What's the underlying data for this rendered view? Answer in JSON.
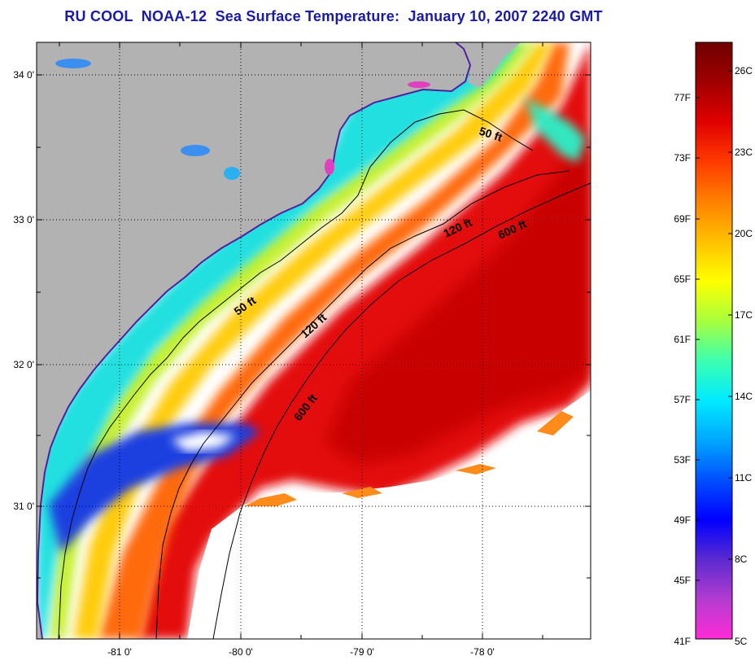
{
  "title": "RU COOL  NOAA-12  Sea Surface Temperature:  January 10, 2007 2240 GMT",
  "map": {
    "lat_ticks": [
      {
        "label": "34 0'"
      },
      {
        "label": "33 0'"
      },
      {
        "label": "32 0'"
      },
      {
        "label": "31 0'"
      }
    ],
    "lon_ticks": [
      {
        "label": "-81 0'"
      },
      {
        "label": "-80 0'"
      },
      {
        "label": "-79 0'"
      },
      {
        "label": "-78 0'"
      }
    ],
    "contour_labels": [
      "50 ft",
      "120 ft",
      "600 ft",
      "50 ft",
      "120 ft",
      "600 ft"
    ],
    "colors": {
      "land": "#b2b2b2",
      "no_data": "#ffffff",
      "grid": "#000000"
    }
  },
  "colorbar": {
    "fahrenheit_labels": [
      "77F",
      "73F",
      "69F",
      "65F",
      "61F",
      "57F",
      "53F",
      "49F",
      "45F",
      "41F"
    ],
    "celsius_labels": [
      "26C",
      "23C",
      "20C",
      "17C",
      "14C",
      "11C",
      "8C",
      "5C"
    ],
    "gradient_colors": [
      "#ff2bd6",
      "#b33cd0",
      "#5b2ad0",
      "#0000ff",
      "#0050ff",
      "#00a8ff",
      "#00eaff",
      "#3cffb0",
      "#a8ff3c",
      "#ffff00",
      "#ffc000",
      "#ff8000",
      "#ff3a00",
      "#e00000",
      "#a00000",
      "#700000"
    ]
  }
}
